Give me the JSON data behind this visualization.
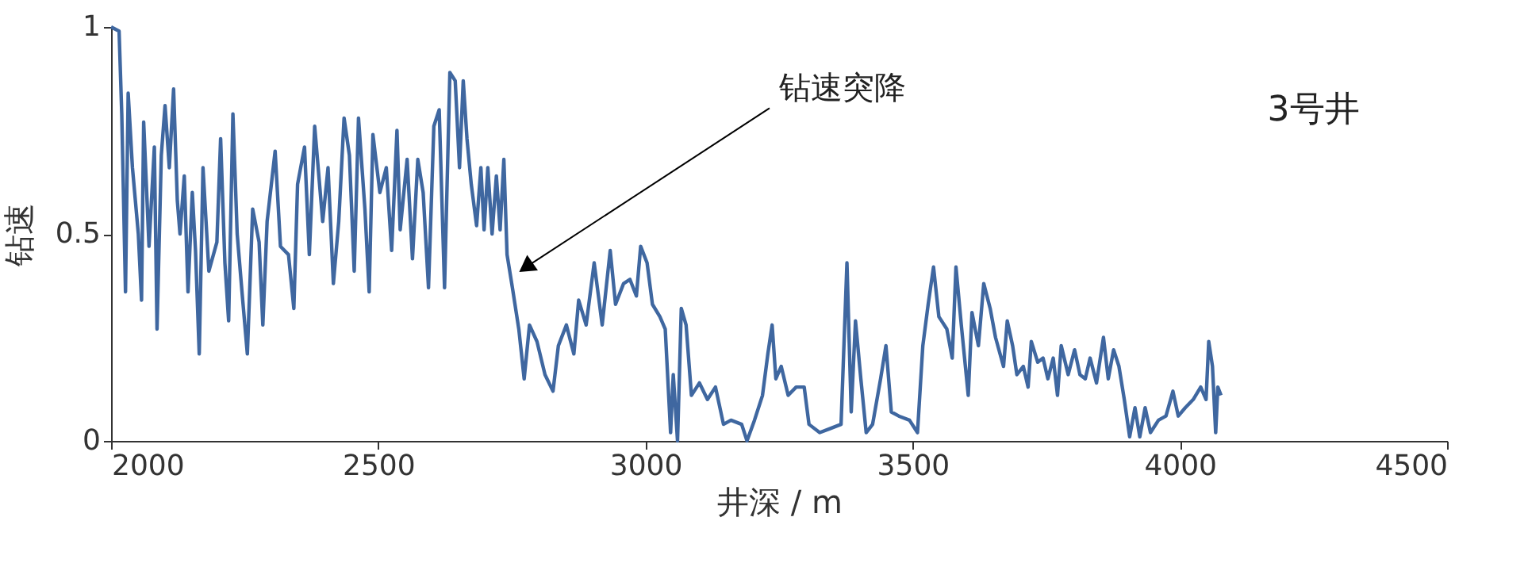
{
  "chart_data": {
    "type": "line",
    "xlabel": "井深 / m",
    "ylabel": "钻速",
    "x": [
      2000,
      2015,
      2020,
      2027,
      2032,
      2040,
      2051,
      2057,
      2061,
      2071,
      2081,
      2086,
      2094,
      2101,
      2109,
      2117,
      2124,
      2129,
      2137,
      2144,
      2152,
      2158,
      2165,
      2172,
      2183,
      2198,
      2205,
      2213,
      2220,
      2228,
      2236,
      2245,
      2255,
      2265,
      2277,
      2284,
      2292,
      2307,
      2317,
      2332,
      2342,
      2349,
      2362,
      2371,
      2381,
      2396,
      2406,
      2416,
      2426,
      2436,
      2446,
      2455,
      2463,
      2475,
      2483,
      2490,
      2503,
      2515,
      2525,
      2535,
      2541,
      2554,
      2564,
      2574,
      2584,
      2594,
      2604,
      2614,
      2624,
      2634,
      2644,
      2652,
      2659,
      2666,
      2674,
      2684,
      2692,
      2698,
      2705,
      2713,
      2721,
      2728,
      2735,
      2741,
      2751,
      2763,
      2773,
      2783,
      2797,
      2812,
      2827,
      2837,
      2852,
      2866,
      2875,
      2889,
      2904,
      2919,
      2934,
      2944,
      2959,
      2971,
      2983,
      2991,
      3003,
      3013,
      3027,
      3037,
      3047,
      3052,
      3060,
      3067,
      3076,
      3086,
      3101,
      3116,
      3131,
      3146,
      3160,
      3180,
      3190,
      3204,
      3219,
      3229,
      3237,
      3244,
      3254,
      3267,
      3282,
      3297,
      3306,
      3326,
      3346,
      3366,
      3377,
      3385,
      3393,
      3403,
      3413,
      3425,
      3440,
      3450,
      3460,
      3474,
      3494,
      3509,
      3519,
      3529,
      3539,
      3549,
      3564,
      3574,
      3581,
      3591,
      3604,
      3611,
      3623,
      3633,
      3645,
      3655,
      3670,
      3677,
      3687,
      3695,
      3707,
      3716,
      3722,
      3734,
      3744,
      3753,
      3763,
      3771,
      3778,
      3791,
      3803,
      3813,
      3823,
      3832,
      3844,
      3857,
      3866,
      3876,
      3886,
      3896,
      3906,
      3916,
      3925,
      3935,
      3945,
      3960,
      3974,
      3987,
      3997,
      4010,
      4025,
      4039,
      4049,
      4054,
      4061,
      4067,
      4071,
      4077
    ],
    "series": [
      {
        "color": "#3f67a0",
        "values": [
          1.0,
          0.99,
          0.79,
          0.36,
          0.84,
          0.66,
          0.5,
          0.34,
          0.77,
          0.47,
          0.71,
          0.27,
          0.69,
          0.81,
          0.66,
          0.85,
          0.58,
          0.5,
          0.64,
          0.36,
          0.6,
          0.46,
          0.21,
          0.66,
          0.41,
          0.48,
          0.73,
          0.43,
          0.29,
          0.79,
          0.5,
          0.36,
          0.21,
          0.56,
          0.48,
          0.28,
          0.53,
          0.7,
          0.47,
          0.45,
          0.32,
          0.62,
          0.71,
          0.45,
          0.76,
          0.53,
          0.66,
          0.38,
          0.53,
          0.78,
          0.69,
          0.41,
          0.78,
          0.56,
          0.36,
          0.74,
          0.6,
          0.66,
          0.46,
          0.75,
          0.51,
          0.68,
          0.44,
          0.68,
          0.6,
          0.37,
          0.76,
          0.8,
          0.37,
          0.89,
          0.87,
          0.66,
          0.87,
          0.73,
          0.62,
          0.52,
          0.66,
          0.51,
          0.66,
          0.5,
          0.64,
          0.51,
          0.68,
          0.45,
          0.37,
          0.27,
          0.15,
          0.28,
          0.24,
          0.16,
          0.12,
          0.23,
          0.28,
          0.21,
          0.34,
          0.28,
          0.43,
          0.28,
          0.46,
          0.33,
          0.38,
          0.39,
          0.35,
          0.47,
          0.43,
          0.33,
          0.3,
          0.27,
          0.02,
          0.16,
          0.0,
          0.32,
          0.28,
          0.11,
          0.14,
          0.1,
          0.13,
          0.04,
          0.05,
          0.04,
          0.0,
          0.05,
          0.11,
          0.21,
          0.28,
          0.15,
          0.18,
          0.11,
          0.13,
          0.13,
          0.04,
          0.02,
          0.03,
          0.04,
          0.43,
          0.07,
          0.29,
          0.15,
          0.02,
          0.04,
          0.15,
          0.23,
          0.07,
          0.06,
          0.05,
          0.02,
          0.23,
          0.33,
          0.42,
          0.3,
          0.27,
          0.2,
          0.42,
          0.28,
          0.11,
          0.31,
          0.23,
          0.38,
          0.32,
          0.25,
          0.18,
          0.29,
          0.23,
          0.16,
          0.18,
          0.13,
          0.24,
          0.19,
          0.2,
          0.15,
          0.2,
          0.11,
          0.23,
          0.16,
          0.22,
          0.16,
          0.15,
          0.2,
          0.14,
          0.25,
          0.15,
          0.22,
          0.18,
          0.1,
          0.01,
          0.08,
          0.01,
          0.08,
          0.02,
          0.05,
          0.06,
          0.12,
          0.06,
          0.08,
          0.1,
          0.13,
          0.1,
          0.24,
          0.18,
          0.02,
          0.13,
          0.11
        ]
      }
    ],
    "xlim": [
      2000,
      4500
    ],
    "xticks": [
      2000,
      2500,
      3000,
      3500,
      4000,
      4500
    ],
    "ylim": [
      0,
      1
    ],
    "yticks": [
      0,
      0.5,
      1
    ],
    "grid": false,
    "marker": "none",
    "line_style": "solid",
    "annotations": [
      "钻速突降",
      "3号井"
    ]
  }
}
